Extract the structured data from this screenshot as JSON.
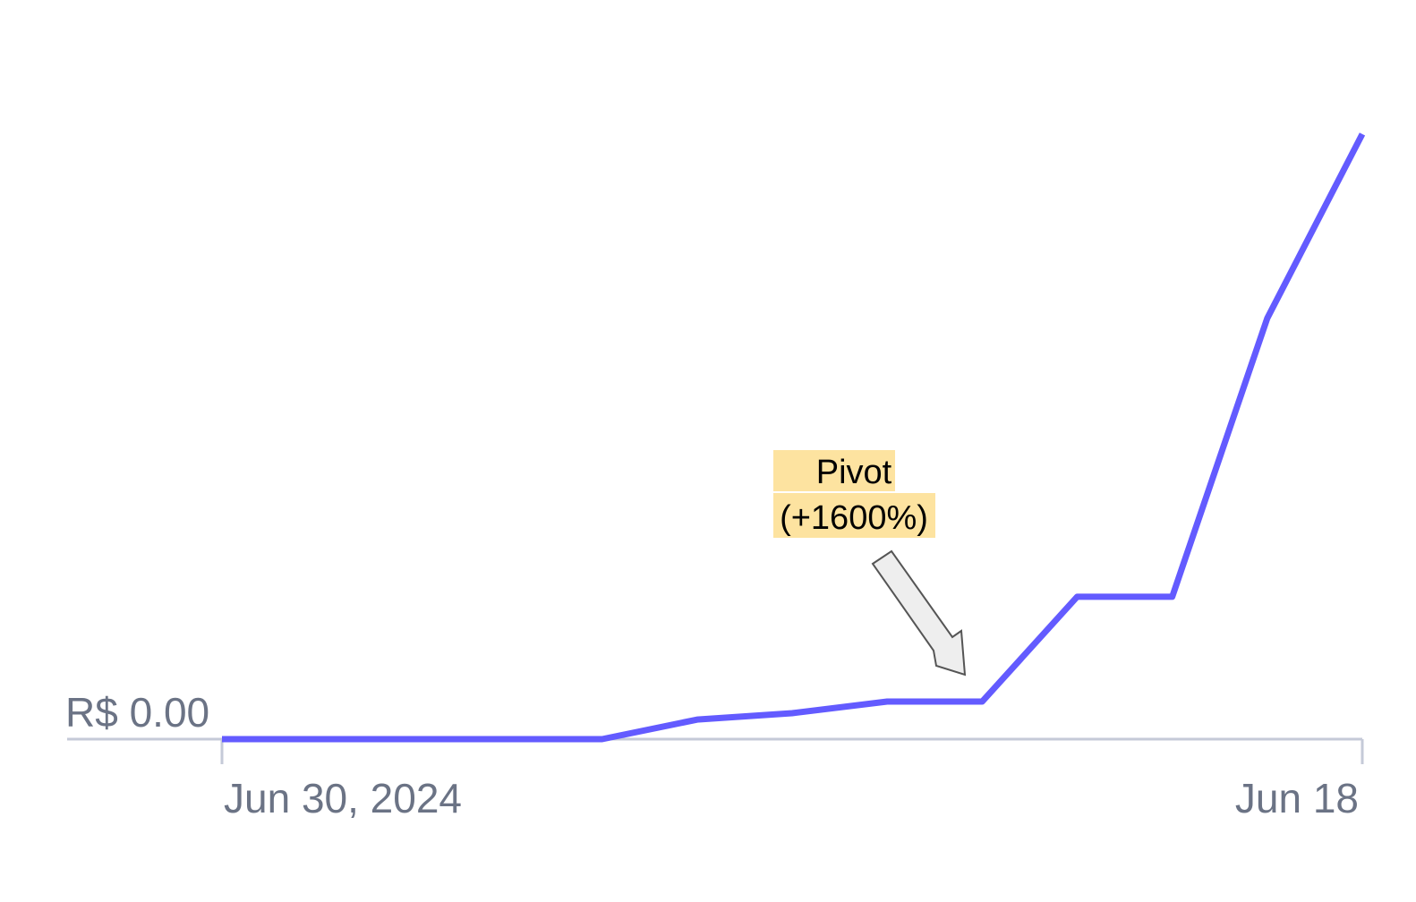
{
  "chart_data": {
    "type": "line",
    "categories": [
      "Jun 30, 2024",
      null,
      null,
      null,
      null,
      null,
      null,
      null,
      null,
      null,
      null,
      null,
      "Jun 18"
    ],
    "series": [
      {
        "color": "#635bff",
        "values": [
          0,
          0,
          0,
          0,
          0,
          0.52,
          0.69,
          1,
          1,
          3.79,
          3.79,
          11.2,
          16.1
        ]
      }
    ],
    "ylim": [
      0,
      17
    ],
    "yticks": [
      {
        "value": 0,
        "label": "R$ 0.00"
      }
    ],
    "annotation": [
      "Pivot",
      "(+1600%)"
    ]
  }
}
